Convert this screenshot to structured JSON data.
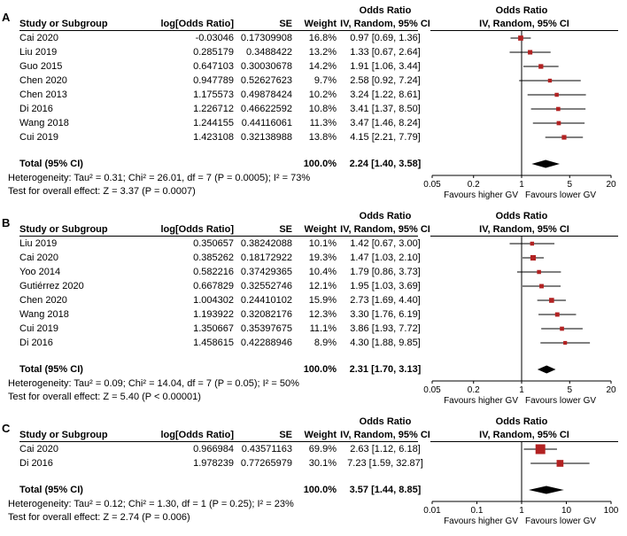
{
  "columns": {
    "study": "Study or Subgroup",
    "log_or": "log[Odds Ratio]",
    "se": "SE",
    "weight": "Weight",
    "ci": "IV, Random, 95% CI",
    "or_header": "Odds Ratio"
  },
  "colors": {
    "square": "#b22222",
    "diamond": "#000000",
    "line": "#000000",
    "text": "#000000",
    "background": "#ffffff"
  },
  "chart_data": [
    {
      "type": "forest",
      "label": "A",
      "effect_measure": "Odds Ratio",
      "model": "IV, Random, 95% CI",
      "studies": [
        {
          "name": "Cai 2020",
          "log_or": "-0.03046",
          "se": "0.17309908",
          "weight": "16.8%",
          "weight_value": 16.8,
          "ci_text": "0.97 [0.69, 1.36]",
          "or": 0.97,
          "low": 0.69,
          "high": 1.36
        },
        {
          "name": "Liu 2019",
          "log_or": "0.285179",
          "se": "0.3488422",
          "weight": "13.2%",
          "weight_value": 13.2,
          "ci_text": "1.33 [0.67, 2.64]",
          "or": 1.33,
          "low": 0.67,
          "high": 2.64
        },
        {
          "name": "Guo 2015",
          "log_or": "0.647103",
          "se": "0.30030678",
          "weight": "14.2%",
          "weight_value": 14.2,
          "ci_text": "1.91 [1.06, 3.44]",
          "or": 1.91,
          "low": 1.06,
          "high": 3.44
        },
        {
          "name": "Chen 2020",
          "log_or": "0.947789",
          "se": "0.52627623",
          "weight": "9.7%",
          "weight_value": 9.7,
          "ci_text": "2.58 [0.92, 7.24]",
          "or": 2.58,
          "low": 0.92,
          "high": 7.24
        },
        {
          "name": "Chen 2013",
          "log_or": "1.175573",
          "se": "0.49878424",
          "weight": "10.2%",
          "weight_value": 10.2,
          "ci_text": "3.24 [1.22, 8.61]",
          "or": 3.24,
          "low": 1.22,
          "high": 8.61
        },
        {
          "name": "Di 2016",
          "log_or": "1.226712",
          "se": "0.46622592",
          "weight": "10.8%",
          "weight_value": 10.8,
          "ci_text": "3.41 [1.37, 8.50]",
          "or": 3.41,
          "low": 1.37,
          "high": 8.5
        },
        {
          "name": "Wang 2018",
          "log_or": "1.244155",
          "se": "0.44116061",
          "weight": "11.3%",
          "weight_value": 11.3,
          "ci_text": "3.47 [1.46, 8.24]",
          "or": 3.47,
          "low": 1.46,
          "high": 8.24
        },
        {
          "name": "Cui 2019",
          "log_or": "1.423108",
          "se": "0.32138988",
          "weight": "13.8%",
          "weight_value": 13.8,
          "ci_text": "4.15 [2.21, 7.79]",
          "or": 4.15,
          "low": 2.21,
          "high": 7.79
        }
      ],
      "total": {
        "label": "Total (95% CI)",
        "weight": "100.0%",
        "ci_text": "2.24 [1.40, 3.58]",
        "or": 2.24,
        "low": 1.4,
        "high": 3.58
      },
      "heterogeneity": "Heterogeneity: Tau² = 0.31; Chi² = 26.01, df = 7 (P = 0.0005); I² = 73%",
      "overall_effect": "Test for overall effect: Z = 3.37 (P = 0.0007)",
      "axis": {
        "scale": "log",
        "min": 0.05,
        "max": 20,
        "ticks": [
          0.05,
          0.2,
          1,
          5,
          20
        ],
        "tick_labels": [
          "0.05",
          "0.2",
          "1",
          "5",
          "20"
        ]
      },
      "favours_left": "Favours higher GV",
      "favours_right": "Favours lower GV"
    },
    {
      "type": "forest",
      "label": "B",
      "effect_measure": "Odds Ratio",
      "model": "IV, Random, 95% CI",
      "studies": [
        {
          "name": "Liu 2019",
          "log_or": "0.350657",
          "se": "0.38242088",
          "weight": "10.1%",
          "weight_value": 10.1,
          "ci_text": "1.42 [0.67, 3.00]",
          "or": 1.42,
          "low": 0.67,
          "high": 3.0
        },
        {
          "name": "Cai 2020",
          "log_or": "0.385262",
          "se": "0.18172922",
          "weight": "19.3%",
          "weight_value": 19.3,
          "ci_text": "1.47 [1.03, 2.10]",
          "or": 1.47,
          "low": 1.03,
          "high": 2.1
        },
        {
          "name": "Yoo 2014",
          "log_or": "0.582216",
          "se": "0.37429365",
          "weight": "10.4%",
          "weight_value": 10.4,
          "ci_text": "1.79 [0.86, 3.73]",
          "or": 1.79,
          "low": 0.86,
          "high": 3.73
        },
        {
          "name": "Gutiérrez 2020",
          "log_or": "0.667829",
          "se": "0.32552746",
          "weight": "12.1%",
          "weight_value": 12.1,
          "ci_text": "1.95 [1.03, 3.69]",
          "or": 1.95,
          "low": 1.03,
          "high": 3.69
        },
        {
          "name": "Chen 2020",
          "log_or": "1.004302",
          "se": "0.24410102",
          "weight": "15.9%",
          "weight_value": 15.9,
          "ci_text": "2.73 [1.69, 4.40]",
          "or": 2.73,
          "low": 1.69,
          "high": 4.4
        },
        {
          "name": "Wang 2018",
          "log_or": "1.193922",
          "se": "0.32082176",
          "weight": "12.3%",
          "weight_value": 12.3,
          "ci_text": "3.30 [1.76, 6.19]",
          "or": 3.3,
          "low": 1.76,
          "high": 6.19
        },
        {
          "name": "Cui 2019",
          "log_or": "1.350667",
          "se": "0.35397675",
          "weight": "11.1%",
          "weight_value": 11.1,
          "ci_text": "3.86 [1.93, 7.72]",
          "or": 3.86,
          "low": 1.93,
          "high": 7.72
        },
        {
          "name": "Di 2016",
          "log_or": "1.458615",
          "se": "0.42288946",
          "weight": "8.9%",
          "weight_value": 8.9,
          "ci_text": "4.30 [1.88, 9.85]",
          "or": 4.3,
          "low": 1.88,
          "high": 9.85
        }
      ],
      "total": {
        "label": "Total (95% CI)",
        "weight": "100.0%",
        "ci_text": "2.31 [1.70, 3.13]",
        "or": 2.31,
        "low": 1.7,
        "high": 3.13
      },
      "heterogeneity": "Heterogeneity: Tau² = 0.09; Chi² = 14.04, df = 7 (P = 0.05); I² = 50%",
      "overall_effect": "Test for overall effect: Z = 5.40 (P < 0.00001)",
      "axis": {
        "scale": "log",
        "min": 0.05,
        "max": 20,
        "ticks": [
          0.05,
          0.2,
          1,
          5,
          20
        ],
        "tick_labels": [
          "0.05",
          "0.2",
          "1",
          "5",
          "20"
        ]
      },
      "favours_left": "Favours higher GV",
      "favours_right": "Favours lower GV"
    },
    {
      "type": "forest",
      "label": "C",
      "effect_measure": "Odds Ratio",
      "model": "IV, Random, 95% CI",
      "studies": [
        {
          "name": "Cai 2020",
          "log_or": "0.966984",
          "se": "0.43571163",
          "weight": "69.9%",
          "weight_value": 69.9,
          "ci_text": "2.63 [1.12, 6.18]",
          "or": 2.63,
          "low": 1.12,
          "high": 6.18
        },
        {
          "name": "Di 2016",
          "log_or": "1.978239",
          "se": "0.77265979",
          "weight": "30.1%",
          "weight_value": 30.1,
          "ci_text": "7.23 [1.59, 32.87]",
          "or": 7.23,
          "low": 1.59,
          "high": 32.87
        }
      ],
      "total": {
        "label": "Total (95% CI)",
        "weight": "100.0%",
        "ci_text": "3.57 [1.44, 8.85]",
        "or": 3.57,
        "low": 1.44,
        "high": 8.85
      },
      "heterogeneity": "Heterogeneity: Tau² = 0.12; Chi² = 1.30, df = 1 (P = 0.25); I² = 23%",
      "overall_effect": "Test for overall effect: Z = 2.74 (P = 0.006)",
      "axis": {
        "scale": "log",
        "min": 0.01,
        "max": 100,
        "ticks": [
          0.01,
          0.1,
          1,
          10,
          100
        ],
        "tick_labels": [
          "0.01",
          "0.1",
          "1",
          "10",
          "100"
        ]
      },
      "favours_left": "Favours higher GV",
      "favours_right": "Favours lower GV"
    }
  ]
}
